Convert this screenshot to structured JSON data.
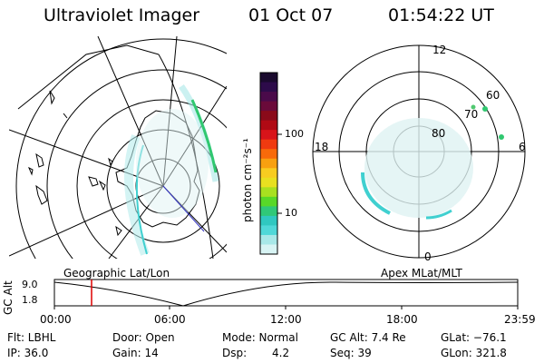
{
  "header": {
    "title": "Ultraviolet Imager",
    "date": "01 Oct 07",
    "time": "01:54:22 UT"
  },
  "colorbar": {
    "label": "photon cm⁻²s⁻¹",
    "ticks": [
      "100",
      "10"
    ],
    "colors": [
      "#1a0a2e",
      "#2d0b4a",
      "#4a0a4a",
      "#6a0a3a",
      "#8a0a1a",
      "#b00a14",
      "#d8141a",
      "#f03a10",
      "#f86a0a",
      "#f8a010",
      "#f8cc20",
      "#e8e020",
      "#a8e020",
      "#58d828",
      "#30c878",
      "#30c8c0",
      "#50d8d8",
      "#a8e8e8",
      "#d8f4f4"
    ]
  },
  "polar_plot": {
    "labels": {
      "top": "12",
      "left": "18",
      "right": "6",
      "bottom": "0"
    },
    "rings": [
      "80",
      "70",
      "60"
    ]
  },
  "timeline": {
    "left_label": "Geographic Lat/Lon",
    "right_label": "Apex MLat/MLT",
    "y_axis_label": "GC Alt",
    "y_ticks": [
      "9.0",
      "1.8"
    ],
    "x_ticks": [
      "00:00",
      "06:00",
      "12:00",
      "18:00",
      "23:59"
    ],
    "cursor_color": "#dd0000"
  },
  "status": {
    "flt": "Flt: LBHL",
    "door": "Door: Open",
    "mode": "Mode: Normal",
    "gc_alt": "GC Alt: 7.4 Re",
    "glat": "GLat: −76.1",
    "ip": "IP: 36.0",
    "gain": "Gain: 14",
    "dsp_label": "Dsp:",
    "dsp_value": "4.2",
    "seq": "Seq: 39",
    "glon": "GLon: 321.8"
  }
}
